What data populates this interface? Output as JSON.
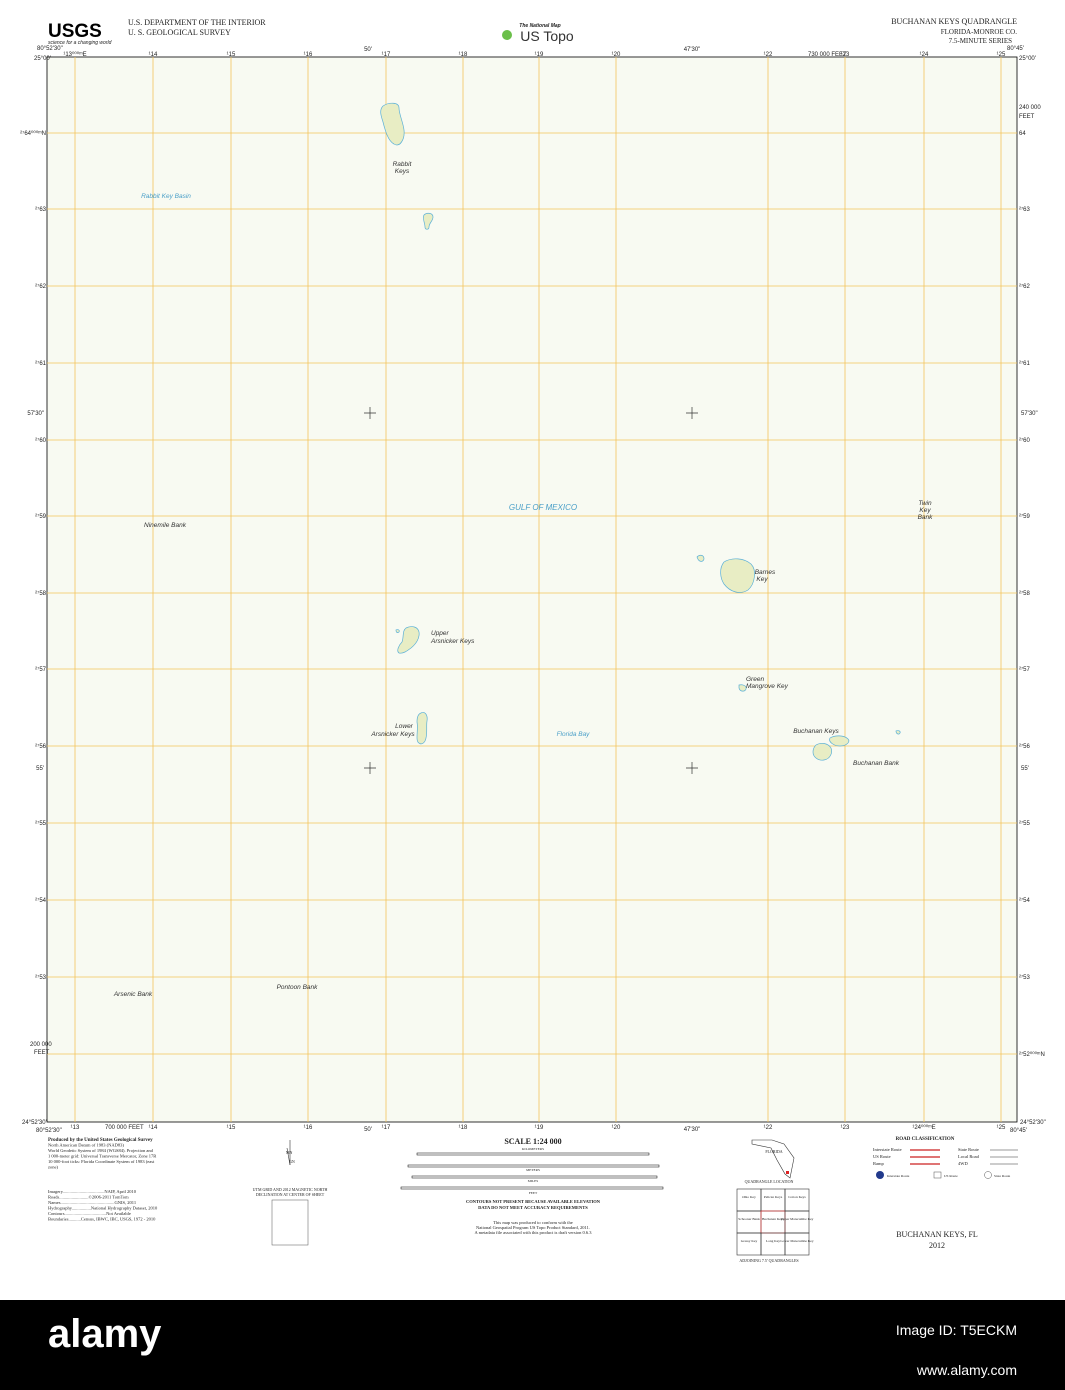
{
  "header": {
    "logo": "USGS",
    "tagline": "science for a changing world",
    "agency": "U.S. DEPARTMENT OF THE INTERIOR",
    "survey": "U. S. GEOLOGICAL SURVEY",
    "national_map": "The National Map",
    "us_topo": "US Topo",
    "quad_title": "BUCHANAN KEYS QUADRANGLE",
    "state_county": "FLORIDA-MONROE CO.",
    "series": "7.5-MINUTE SERIES"
  },
  "map": {
    "corners": {
      "top_left_lon": "80°52'30\"",
      "top_left_lat": "25°00'",
      "top_right_lon": "80°45'",
      "top_right_lat": "25°00'",
      "bottom_left_lon": "80°52'30\"",
      "bottom_left_lat": "24°52'30\"",
      "bottom_right_lon": "80°45'",
      "bottom_right_lat": "24°52'30\""
    },
    "top_ticks": [
      "¹13⁰⁰⁰ᵐE",
      "¹14",
      "¹15",
      "¹16",
      "¹17",
      "¹18",
      "¹19",
      "¹20",
      "¹22",
      "¹23",
      "¹24",
      "¹25"
    ],
    "bottom_ticks": [
      "¹13",
      "¹14",
      "¹15",
      "¹16",
      "¹17",
      "¹18",
      "¹19",
      "¹20",
      "¹22",
      "¹23",
      "¹24⁰⁰⁰ᵐE",
      "¹25"
    ],
    "top_minutes": [
      "50'",
      "47'30\""
    ],
    "bottom_minutes": [
      "50'",
      "47'30\""
    ],
    "top_feet": "730 000 FEET",
    "bottom_feet": "700 000 FEET",
    "left_ticks": [
      "²⁷64⁰⁰⁰ᵐN",
      "²⁷63",
      "²⁷62",
      "²⁷61",
      "²⁷60",
      "²⁷59",
      "²⁷58",
      "²⁷57",
      "²⁷56",
      "²⁷55",
      "²⁷54",
      "²⁷53"
    ],
    "right_ticks": [
      "64",
      "²⁷63",
      "²⁷62",
      "²⁷61",
      "²⁷60",
      "²⁷59",
      "²⁷58",
      "²⁷57",
      "²⁷56",
      "²⁷55",
      "²⁷54",
      "²⁷53",
      "²⁷52⁰⁰⁰ᵐN"
    ],
    "side_minutes": [
      "57'30\"",
      "55'"
    ],
    "left_feet": [
      "200 000",
      "FEET"
    ],
    "right_feet": [
      "240 000",
      "FEET"
    ],
    "labels": [
      [
        "Rabbit",
        "Keys"
      ],
      [
        "Rabbit Key Basin"
      ],
      [
        "GULF OF MEXICO"
      ],
      [
        "Ninemile Bank"
      ],
      [
        "Twin",
        "Key",
        "Bank"
      ],
      [
        "Barnes",
        "Key"
      ],
      [
        "Upper",
        "Arsnicker Keys"
      ],
      [
        "Green",
        "Mangrove Key"
      ],
      [
        "Lower",
        "Arsnicker Keys"
      ],
      [
        "Florida Bay"
      ],
      [
        "Buchanan Keys"
      ],
      [
        "Buchanan Bank"
      ],
      [
        "Arsenic Bank"
      ],
      [
        "Pontoon Bank"
      ]
    ]
  },
  "footer": {
    "credits": [
      "Produced by the United States Geological Survey",
      "North American Datum of 1983 (NAD83)",
      "World Geodetic System of 1984 (WGS84).  Projection and",
      "1 000-meter grid: Universal Transverse Mercator, Zone 17R",
      "10 000-foot ticks: Florida Coordinate System of 1983 (east",
      "zone)"
    ],
    "sources": [
      "Imagery.....................................NAIP, April 2010",
      "Roads..........................©2006-2011 TomTom",
      "Names................................................GNIS, 2011",
      "Hydrography.................National Hydrography Dataset, 2010",
      "Contours.....................................Not Available",
      "Boundaries...........Census, IBWC, IBC, USGS, 1972 - 2010"
    ],
    "declination": [
      "MN",
      "GN",
      "UTM GRID AND 2012 MAGNETIC NORTH",
      "DECLINATION AT CENTER OF SHEET"
    ],
    "scale": "SCALE 1:24 000",
    "scale_units": [
      "KILOMETERS",
      "METERS",
      "MILES",
      "FEET"
    ],
    "notes": [
      "CONTOURS NOT PRESENT BECAUSE AVAILABLE ELEVATION",
      "DATA DO NOT MEET ACCURACY REQUIREMENTS",
      "This map was produced to conform with the",
      "National Geospatial Program US Topo Product Standard, 2011.",
      "A metadata file associated with this product is draft version 0.6.3"
    ],
    "location": {
      "state": "FLORIDA",
      "title": "QUADRANGLE LOCATION",
      "adjoining": [
        "Ohio Key",
        "Pelican Keys",
        "Cotton Keys",
        "Schooner Bank",
        "Buchanan Keys",
        "Upper Matecumbe Key",
        "Grassy Key",
        "Long Key",
        "Lower Matecumbe Key"
      ],
      "adjoining_title": "ADJOINING 7.5' QUADRANGLES"
    },
    "roads": {
      "title": "ROAD CLASSIFICATION",
      "types": [
        "Interstate Route",
        "State Route",
        "US Route",
        "Local Road",
        "Ramp",
        "4WD"
      ],
      "shields": [
        "Interstate Route",
        "US Route",
        "State Route"
      ]
    },
    "sheet_name": "BUCHANAN KEYS, FL",
    "year": "2012"
  },
  "watermark": {
    "logo": "alamy",
    "image_id": "Image ID: T5ECKM",
    "site": "www.alamy.com"
  }
}
